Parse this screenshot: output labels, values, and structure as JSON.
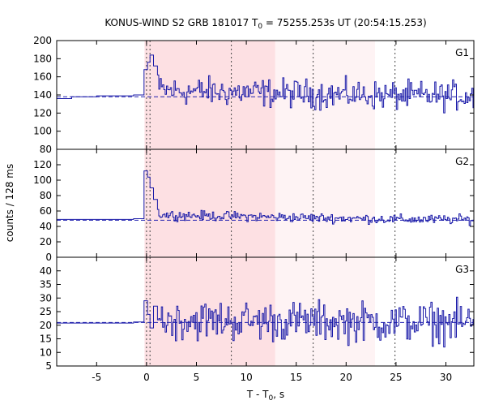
{
  "chart_data": {
    "type": "line",
    "title_prefix": "KONUS-WIND S2 GRB 181017 T",
    "title_sub": "0",
    "title_suffix": " = 75255.253s UT (20:54:15.253)",
    "xlabel_prefix": "T - T",
    "xlabel_sub": "0",
    "xlabel_suffix": ", s",
    "ylabel": "counts / 128 ms",
    "xlim": [
      -9.0,
      32.8
    ],
    "xticks": [
      -5,
      0,
      5,
      10,
      15,
      20,
      25,
      30
    ],
    "shaded_regions": [
      {
        "x0": -0.2,
        "x1": 12.9,
        "color": "#fde0e3"
      },
      {
        "x0": 12.9,
        "x1": 22.9,
        "color": "#fef3f4"
      }
    ],
    "vlines": [
      0.0,
      0.35,
      8.5,
      16.7,
      24.9
    ],
    "panels": [
      {
        "name": "G1",
        "ylim": [
          80,
          200
        ],
        "yticks": [
          80,
          100,
          120,
          140,
          160,
          180,
          200
        ],
        "background": 138,
        "pre_trigger": [
          {
            "x": -9.0,
            "y": 136
          },
          {
            "x": -7.5,
            "y": 138
          },
          {
            "x": -5.0,
            "y": 139
          },
          {
            "x": -1.3,
            "y": 140
          }
        ],
        "peak": [
          {
            "x": -0.25,
            "y": 168
          },
          {
            "x": 0.1,
            "y": 176
          },
          {
            "x": 0.35,
            "y": 184
          },
          {
            "x": 0.7,
            "y": 172
          },
          {
            "x": 1.1,
            "y": 162
          }
        ],
        "noise_mean": 145,
        "noise_amp": 13,
        "noise_decay_to": 139
      },
      {
        "name": "G2",
        "ylim": [
          0,
          140
        ],
        "yticks": [
          0,
          20,
          40,
          60,
          80,
          100,
          120
        ],
        "background": 48,
        "pre_trigger": [
          {
            "x": -9.0,
            "y": 49
          },
          {
            "x": -1.3,
            "y": 50
          }
        ],
        "peak": [
          {
            "x": -0.25,
            "y": 112
          },
          {
            "x": 0.1,
            "y": 104
          },
          {
            "x": 0.35,
            "y": 90
          },
          {
            "x": 0.7,
            "y": 75
          },
          {
            "x": 1.1,
            "y": 62
          }
        ],
        "noise_mean": 55,
        "noise_amp": 5,
        "noise_decay_to": 49
      },
      {
        "name": "G3",
        "ylim": [
          5,
          45
        ],
        "yticks": [
          5,
          10,
          15,
          20,
          25,
          30,
          35,
          40
        ],
        "background": 21,
        "pre_trigger": [
          {
            "x": -9.0,
            "y": 20.8
          },
          {
            "x": -1.3,
            "y": 21.2
          }
        ],
        "peak": [
          {
            "x": -0.25,
            "y": 29
          },
          {
            "x": 0.1,
            "y": 24
          },
          {
            "x": 0.35,
            "y": 19
          },
          {
            "x": 0.7,
            "y": 27
          },
          {
            "x": 1.1,
            "y": 22
          }
        ],
        "noise_mean": 22,
        "noise_amp": 6,
        "noise_decay_to": 21
      }
    ]
  }
}
